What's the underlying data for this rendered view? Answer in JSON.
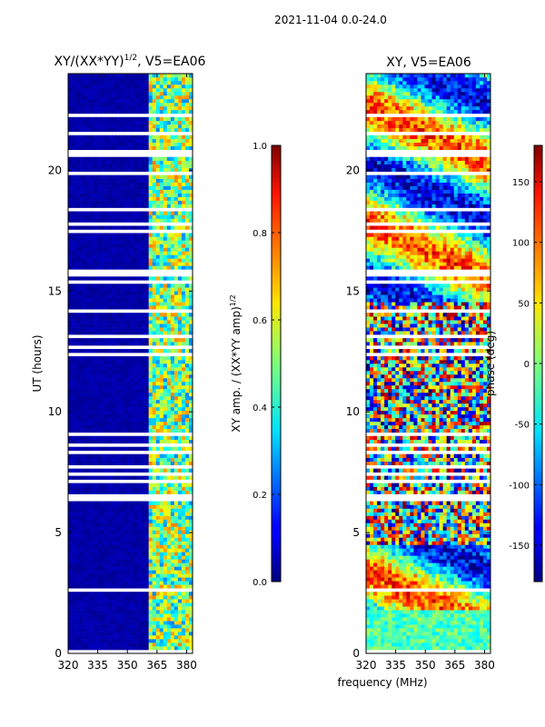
{
  "suptitle": "2021-11-04 0.0-24.0",
  "chart_data": [
    {
      "type": "heatmap",
      "title": "XY/(XX*YY)^1/2, V5=EA06",
      "title_main": "XY/(XX*YY)",
      "title_exp": "1/2",
      "title_tail": ", V5=EA06",
      "xlabel": "",
      "ylabel": "UT (hours)",
      "xlim": [
        320,
        383
      ],
      "ylim": [
        0,
        24
      ],
      "xticks": [
        320,
        335,
        350,
        365,
        380
      ],
      "yticks": [
        0,
        5,
        10,
        15,
        20
      ],
      "colorbar": {
        "label_main": "XY amp. / (XX*YY amp)",
        "label_exp": "1/2",
        "range": [
          0.0,
          1.0
        ],
        "ticks": [
          "0.0",
          "0.2",
          "0.4",
          "0.6",
          "0.8",
          "1.0"
        ]
      },
      "description": "Mostly near-zero (dark blue) below ~360 MHz, elevated normalized amplitude (0.3-0.8) in bands between ~360 and 383 MHz; many white (flagged) horizontal gaps."
    },
    {
      "type": "heatmap",
      "title": "XY, V5=EA06",
      "xlabel": "frequency (MHz)",
      "ylabel": "",
      "xlim": [
        320,
        383
      ],
      "ylim": [
        0,
        24
      ],
      "xticks": [
        320,
        335,
        350,
        365,
        380
      ],
      "yticks": [
        0,
        5,
        10,
        15,
        20
      ],
      "colorbar": {
        "label": "phase (deg)",
        "range": [
          -180,
          180
        ],
        "ticks": [
          "-150",
          "-100",
          "-50",
          "0",
          "50",
          "100",
          "150"
        ]
      },
      "description": "Phase varies across full -180..180 range; noisy in 5-14 h, smoother structures after 15 h; white flagged gaps."
    }
  ]
}
